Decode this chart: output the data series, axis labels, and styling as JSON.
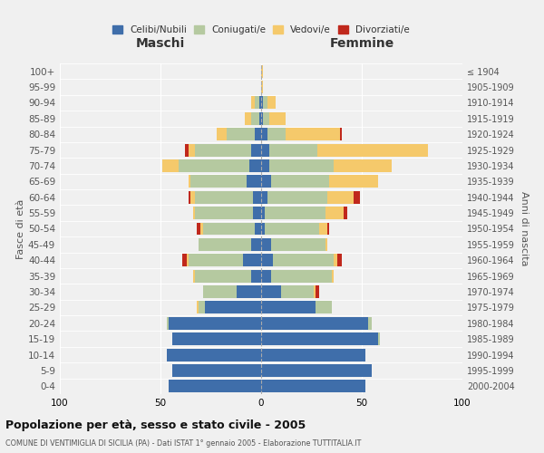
{
  "age_groups": [
    "0-4",
    "5-9",
    "10-14",
    "15-19",
    "20-24",
    "25-29",
    "30-34",
    "35-39",
    "40-44",
    "45-49",
    "50-54",
    "55-59",
    "60-64",
    "65-69",
    "70-74",
    "75-79",
    "80-84",
    "85-89",
    "90-94",
    "95-99",
    "100+"
  ],
  "birth_years": [
    "2000-2004",
    "1995-1999",
    "1990-1994",
    "1985-1989",
    "1980-1984",
    "1975-1979",
    "1970-1974",
    "1965-1969",
    "1960-1964",
    "1955-1959",
    "1950-1954",
    "1945-1949",
    "1940-1944",
    "1935-1939",
    "1930-1934",
    "1925-1929",
    "1920-1924",
    "1915-1919",
    "1910-1914",
    "1905-1909",
    "≤ 1904"
  ],
  "colors": {
    "celibe": "#3f6eaa",
    "coniugato": "#b5c9a0",
    "vedovo": "#f5c96b",
    "divorziato": "#c0281c"
  },
  "maschi": {
    "celibe": [
      46,
      44,
      47,
      44,
      46,
      28,
      12,
      5,
      9,
      5,
      3,
      4,
      4,
      7,
      6,
      5,
      3,
      1,
      1,
      0,
      0
    ],
    "coniugato": [
      0,
      0,
      0,
      0,
      1,
      3,
      17,
      28,
      27,
      26,
      26,
      29,
      29,
      28,
      35,
      28,
      14,
      4,
      2,
      0,
      0
    ],
    "vedovo": [
      0,
      0,
      0,
      0,
      0,
      1,
      0,
      1,
      1,
      0,
      1,
      1,
      2,
      1,
      8,
      3,
      5,
      3,
      2,
      0,
      0
    ],
    "divorziato": [
      0,
      0,
      0,
      0,
      0,
      0,
      0,
      0,
      2,
      0,
      2,
      0,
      1,
      0,
      0,
      2,
      0,
      0,
      0,
      0,
      0
    ]
  },
  "femmine": {
    "celibe": [
      52,
      55,
      52,
      58,
      53,
      27,
      10,
      5,
      6,
      5,
      2,
      2,
      3,
      5,
      4,
      4,
      3,
      1,
      1,
      0,
      0
    ],
    "coniugato": [
      0,
      0,
      0,
      1,
      2,
      8,
      16,
      30,
      30,
      27,
      27,
      30,
      30,
      29,
      32,
      24,
      9,
      3,
      2,
      0,
      0
    ],
    "vedovo": [
      0,
      0,
      0,
      0,
      0,
      0,
      1,
      1,
      2,
      1,
      4,
      9,
      13,
      24,
      29,
      55,
      27,
      8,
      4,
      1,
      1
    ],
    "divorziato": [
      0,
      0,
      0,
      0,
      0,
      0,
      2,
      0,
      2,
      0,
      1,
      2,
      3,
      0,
      0,
      0,
      1,
      0,
      0,
      0,
      0
    ]
  },
  "xlim": 100,
  "title": "Popolazione per età, sesso e stato civile - 2005",
  "subtitle": "COMUNE DI VENTIMIGLIA DI SICILIA (PA) - Dati ISTAT 1° gennaio 2005 - Elaborazione TUTTITALIA.IT",
  "ylabel_left": "Fasce di età",
  "ylabel_right": "Anni di nascita",
  "xlabel_maschi": "Maschi",
  "xlabel_femmine": "Femmine",
  "bg_color": "#f0f0f0",
  "legend_labels": [
    "Celibi/Nubili",
    "Coniugati/e",
    "Vedovi/e",
    "Divorziati/e"
  ]
}
